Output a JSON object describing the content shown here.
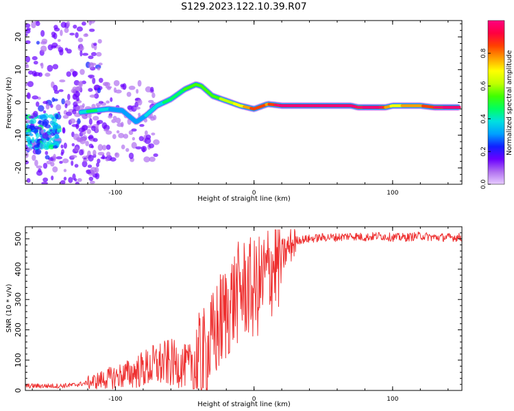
{
  "figure": {
    "title": "S129.2023.122.10.39.R07"
  },
  "chart_data": [
    {
      "type": "heatmap",
      "title": "",
      "xlabel": "Height of straight line (km)",
      "ylabel": "Frequency (Hz)",
      "xlim": [
        -165,
        150
      ],
      "ylim": [
        -25,
        25
      ],
      "x_ticks": [
        -100,
        0,
        100
      ],
      "y_ticks": [
        -20,
        -10,
        0,
        10,
        20
      ],
      "colorbar": {
        "label": "Normalized spectral amplitude",
        "range": [
          0,
          1
        ],
        "ticks": [
          "0.0",
          "0.2",
          "0.4",
          "0.6",
          "0.8"
        ],
        "colors": [
          "#e8ccff",
          "#b070f0",
          "#6a00ff",
          "#1020ff",
          "#00a0ff",
          "#00e0e0",
          "#00ff60",
          "#40ff00",
          "#c0ff00",
          "#ffff00",
          "#ffa000",
          "#ff4000",
          "#ff0040",
          "#ff0080"
        ]
      },
      "ridge": {
        "x": [
          -125,
          -115,
          -105,
          -95,
          -85,
          -78,
          -70,
          -60,
          -50,
          -42,
          -38,
          -30,
          -20,
          -10,
          0,
          10,
          20,
          30,
          40,
          50,
          60,
          70,
          75,
          80,
          90,
          95,
          100,
          110,
          120,
          130,
          140,
          148
        ],
        "freq_hz": [
          -3,
          -2.5,
          -2,
          -2.5,
          -6,
          -4,
          -1,
          1,
          4,
          5.5,
          5,
          2,
          0.5,
          -1,
          -2,
          -0.5,
          -1,
          -1,
          -1,
          -1,
          -1,
          -1,
          -1.5,
          -1.5,
          -1.5,
          -1.5,
          -1,
          -1,
          -1,
          -1.5,
          -1.5,
          -1.5
        ],
        "amplitude": [
          0.4,
          0.45,
          0.35,
          0.3,
          0.3,
          0.35,
          0.4,
          0.45,
          0.5,
          0.55,
          0.5,
          0.55,
          0.6,
          0.7,
          0.85,
          0.8,
          0.9,
          0.9,
          0.95,
          0.95,
          0.95,
          0.95,
          0.85,
          0.9,
          0.9,
          0.8,
          0.7,
          0.75,
          0.8,
          0.85,
          0.9,
          0.9
        ]
      }
    },
    {
      "type": "line",
      "title": "",
      "xlabel": "Height of straight line (km)",
      "ylabel": "SNR (10 * v/v)",
      "xlim": [
        -165,
        150
      ],
      "ylim": [
        0,
        540
      ],
      "x_ticks": [
        -100,
        0,
        100
      ],
      "y_ticks": [
        0,
        100,
        200,
        300,
        400,
        500
      ],
      "line_color": "#ee3030",
      "series": [
        {
          "x": [
            -165,
            -150,
            -140,
            -130,
            -120,
            -110,
            -100,
            -90,
            -80,
            -70,
            -60,
            -50,
            -40,
            -35,
            -30,
            -25,
            -20,
            -15,
            -10,
            -5,
            0,
            5,
            10,
            15,
            20,
            25,
            30,
            40,
            50,
            60,
            70,
            80,
            90,
            100,
            110,
            120,
            130,
            140,
            150
          ],
          "y": [
            15,
            15,
            15,
            18,
            25,
            35,
            45,
            55,
            70,
            85,
            90,
            80,
            85,
            110,
            160,
            220,
            260,
            300,
            330,
            340,
            330,
            350,
            390,
            420,
            440,
            470,
            495,
            500,
            505,
            505,
            510,
            505,
            510,
            505,
            505,
            510,
            505,
            505,
            505
          ]
        }
      ]
    }
  ]
}
